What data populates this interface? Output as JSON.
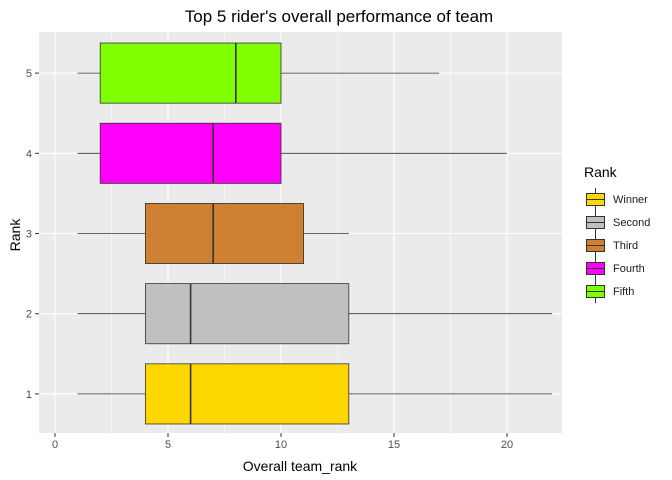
{
  "chart_data": {
    "type": "boxplot",
    "orientation": "horizontal",
    "title": "Top 5 rider's overall performance of team",
    "xlabel": "Overall team_rank",
    "ylabel": "Rank",
    "xlim": [
      0,
      23
    ],
    "x_ticks": [
      0,
      5,
      10,
      15,
      20
    ],
    "y_ticks": [
      "1",
      "2",
      "3",
      "4",
      "5"
    ],
    "grid": true,
    "legend_title": "Rank",
    "legend_position": "right",
    "series": [
      {
        "name": "Winner",
        "rank": "1",
        "color": "#FFD700",
        "min": 1,
        "q1": 4,
        "median": 6,
        "q3": 13,
        "max": 22
      },
      {
        "name": "Second",
        "rank": "2",
        "color": "#C0C0C0",
        "min": 1,
        "q1": 4,
        "median": 6,
        "q3": 13,
        "max": 22
      },
      {
        "name": "Third",
        "rank": "3",
        "color": "#CD7F32",
        "min": 1,
        "q1": 4,
        "median": 7,
        "q3": 11,
        "max": 13
      },
      {
        "name": "Fourth",
        "rank": "4",
        "color": "#FF00FF",
        "min": 1,
        "q1": 2,
        "median": 7,
        "q3": 10,
        "max": 20
      },
      {
        "name": "Fifth",
        "rank": "5",
        "color": "#7FFF00",
        "min": 1,
        "q1": 2,
        "median": 8,
        "q3": 10,
        "max": 17
      }
    ]
  }
}
